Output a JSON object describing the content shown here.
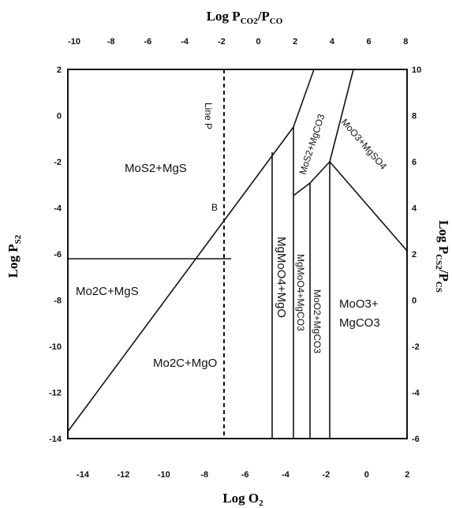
{
  "axes": {
    "top_title": "Log P",
    "top_title_sub": "CO2",
    "top_title_mid": "/P",
    "top_title_sub2": "CO",
    "bottom_title": "Log O",
    "bottom_title_sub": "2",
    "left_title": "Log P",
    "left_title_sub": "S2",
    "right_title": "Log P",
    "right_title_sub": "CS2",
    "right_title_mid": "/P",
    "right_title_sub2": "CS",
    "bottom_ticks": [
      "-14",
      "-12",
      "-10",
      "-8",
      "-6",
      "-4",
      "-2",
      "0",
      "2"
    ],
    "top_ticks": [
      "-10",
      "-8",
      "-6",
      "-4",
      "-2",
      "0",
      "2",
      "4",
      "6",
      "8"
    ],
    "left_ticks": [
      "2",
      "0",
      "-2",
      "-4",
      "-6",
      "-8",
      "-10",
      "-12",
      "-14"
    ],
    "right_ticks": [
      "10",
      "8",
      "6",
      "4",
      "2",
      "0",
      "-2",
      "-4",
      "-6"
    ]
  },
  "regions": {
    "mos2_mgs": "MoS2+MgS",
    "mo2c_mgs": "Mo2C+MgS",
    "mo2c_mgo": "Mo2C+MgO",
    "mgmoo4_mgo": "MgMoO4+MgO",
    "mgmoo4_mgco3": "MgMoO4+MgCO3",
    "moo2_mgco3": "MoO2+MgCO3",
    "mos2_mgco3": "MoS2+MgCO3",
    "moo3_mgso4": "MoO3+MgSO4",
    "moo3_mgco3_line1": "MoO3+",
    "moo3_mgco3_line2": "MgCO3"
  },
  "annotations": {
    "line_p": "Line P",
    "point_b": "B"
  }
}
